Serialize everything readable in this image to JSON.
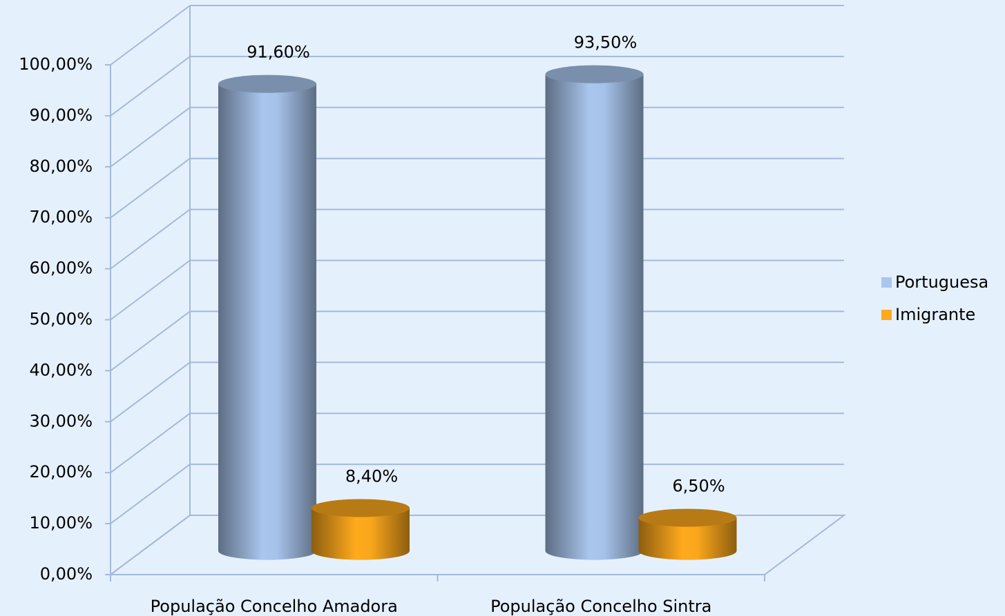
{
  "chart_data": {
    "type": "bar3d",
    "categories": [
      "População Concelho Amadora",
      "População Concelho Sintra"
    ],
    "series": [
      {
        "name": "Portuguesa",
        "color": "#a9c6ee",
        "values": [
          91.6,
          93.5
        ],
        "value_labels": [
          "91,60%",
          "93,50%"
        ]
      },
      {
        "name": "Imigrante",
        "color": "#ffaa1c",
        "values": [
          8.4,
          6.5
        ],
        "value_labels": [
          "8,40%",
          "6,50%"
        ]
      }
    ],
    "ylim": [
      0,
      100
    ],
    "yticks": [
      {
        "value": 0,
        "label": "0,00%"
      },
      {
        "value": 10,
        "label": "10,00%"
      },
      {
        "value": 20,
        "label": "20,00%"
      },
      {
        "value": 30,
        "label": "30,00%"
      },
      {
        "value": 40,
        "label": "40,00%"
      },
      {
        "value": 50,
        "label": "50,00%"
      },
      {
        "value": 60,
        "label": "60,00%"
      },
      {
        "value": 70,
        "label": "70,00%"
      },
      {
        "value": 80,
        "label": "80,00%"
      },
      {
        "value": 90,
        "label": "90,00%"
      },
      {
        "value": 100,
        "label": "100,00%"
      }
    ],
    "grid": true,
    "legend": "right"
  }
}
